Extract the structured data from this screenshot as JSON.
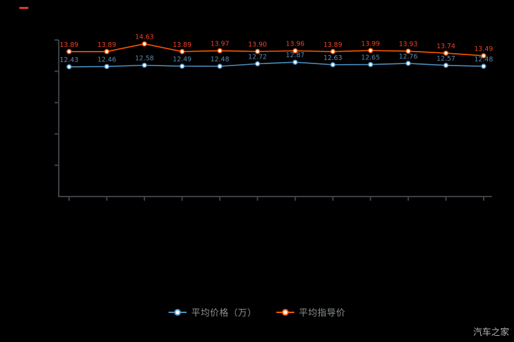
{
  "chart_data": {
    "type": "line",
    "title": "",
    "x_axis_labels_visible": false,
    "categories": [
      "",
      "",
      "",
      "",
      "",
      "",
      "",
      "",
      "",
      "",
      "",
      ""
    ],
    "series": [
      {
        "name": "平均价格（万）",
        "color": "#4a8fc2",
        "label_color": "#5b89b0",
        "values": [
          12.43,
          12.46,
          12.58,
          12.49,
          12.48,
          12.72,
          12.87,
          12.63,
          12.65,
          12.76,
          12.57,
          12.48
        ]
      },
      {
        "name": "平均指导价",
        "color": "#ff5500",
        "label_color": "#ef4123",
        "values": [
          13.89,
          13.89,
          14.63,
          13.89,
          13.97,
          13.9,
          13.96,
          13.89,
          13.99,
          13.93,
          13.74,
          13.49
        ]
      }
    ],
    "ylim": [
      0,
      15
    ],
    "yticks": [
      3,
      6,
      9,
      12,
      15
    ],
    "legend_position": "bottom",
    "grid": false,
    "axis_color": "#3d4046",
    "background": "#000000"
  },
  "watermark": {
    "text": "汽车之家"
  }
}
